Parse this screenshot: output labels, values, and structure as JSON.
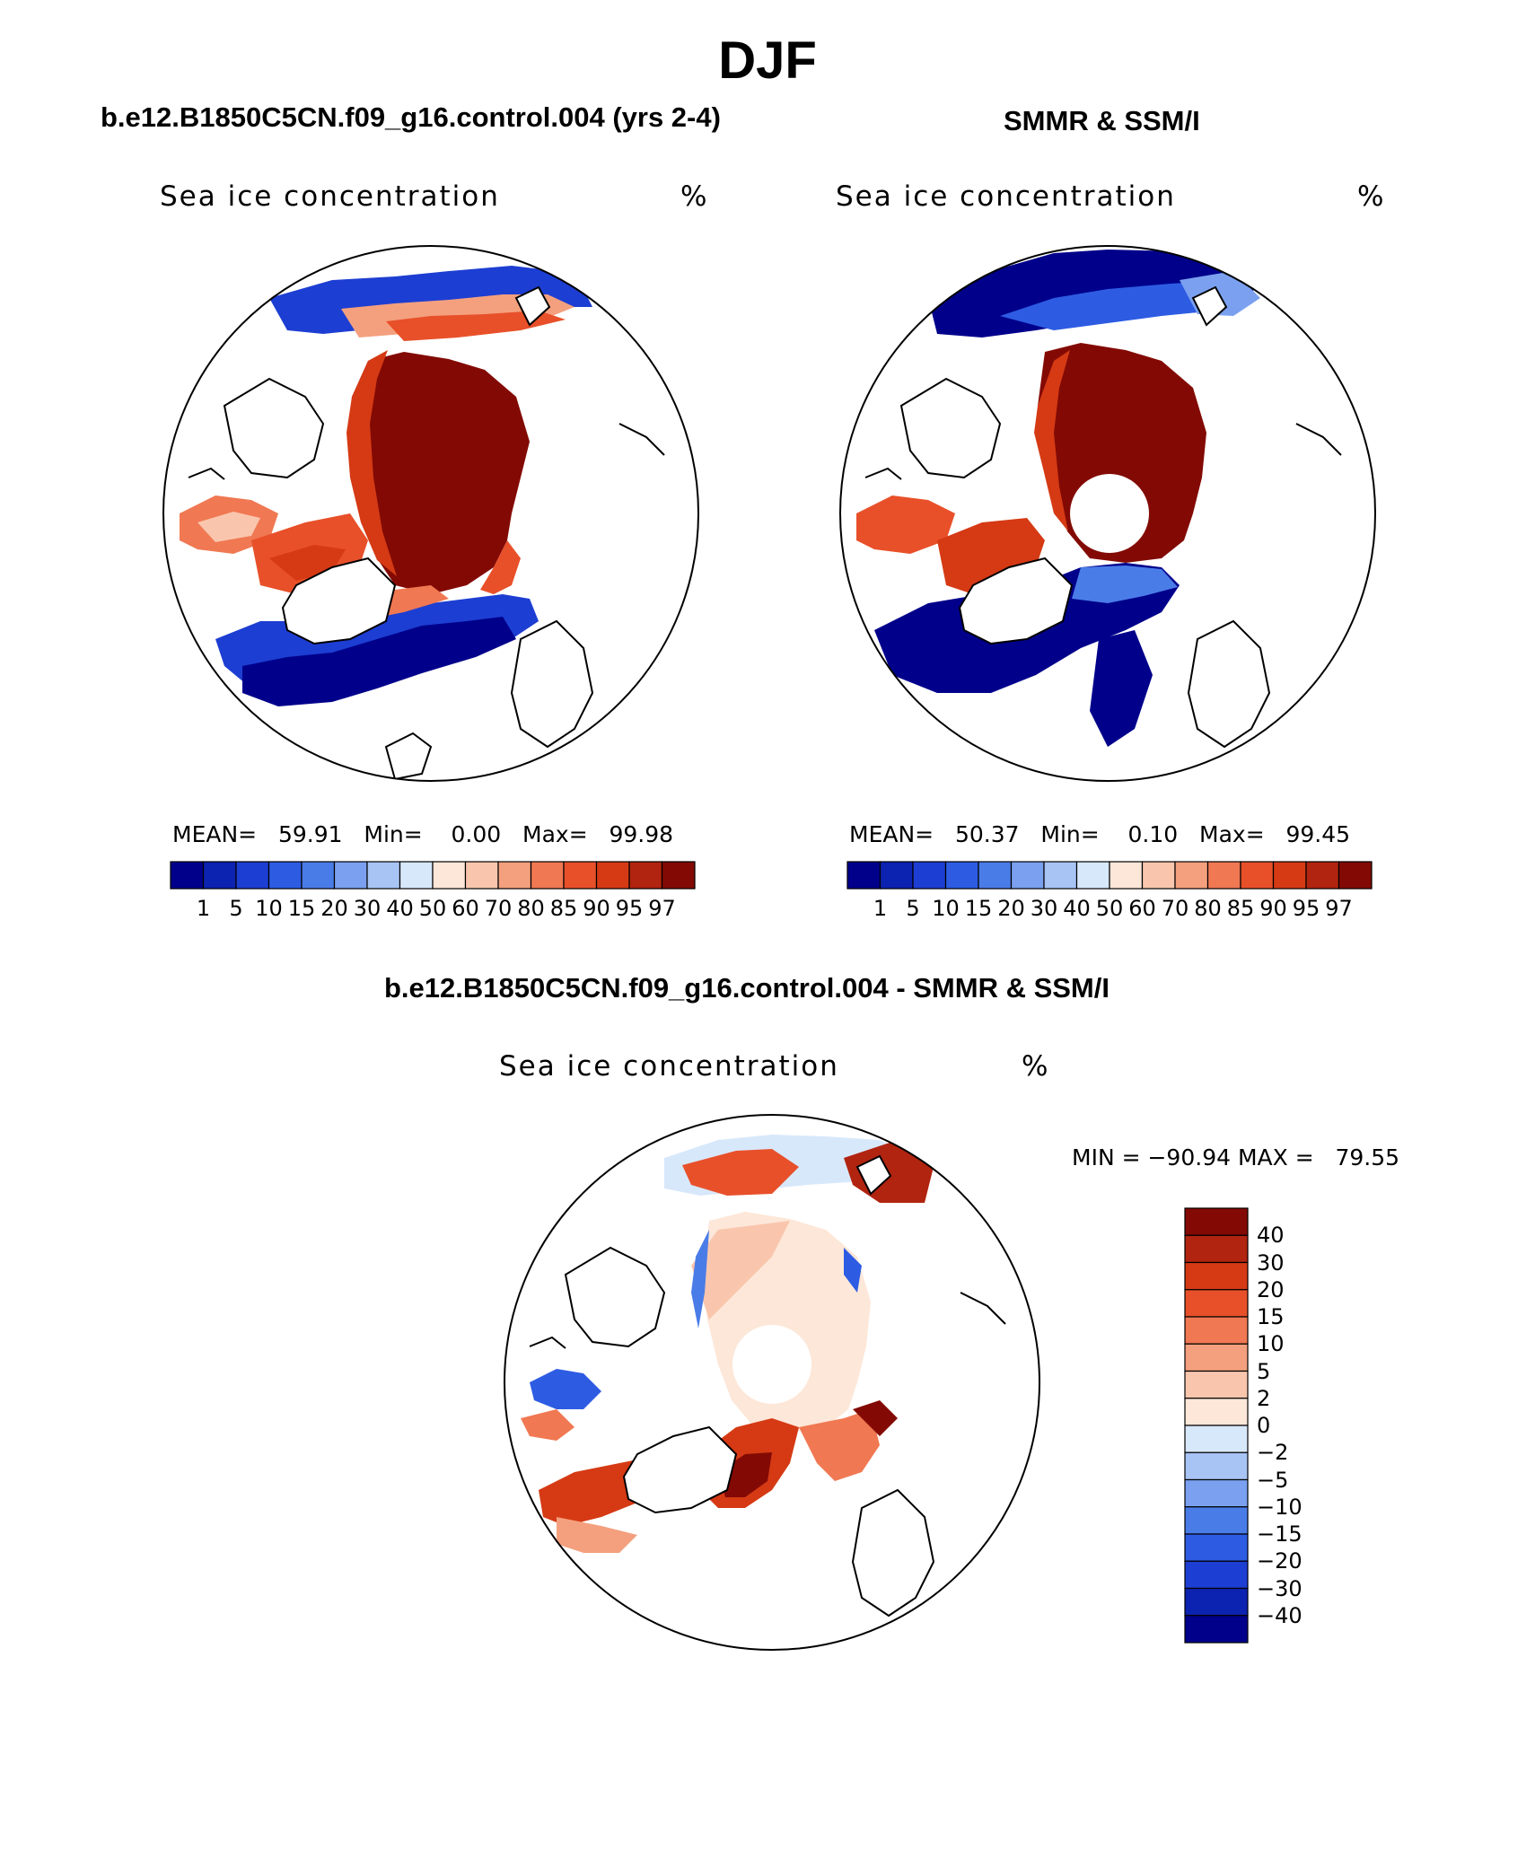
{
  "page": {
    "title": "DJF"
  },
  "panels": {
    "model": {
      "header": "b.e12.B1850C5CN.f09_g16.control.004 (yrs 2-4)",
      "field_label": "Sea ice concentration",
      "units": "%",
      "mean_label": "MEAN=",
      "mean": "59.91",
      "min_label": "Min=",
      "min": "0.00",
      "max_label": "Max=",
      "max": "99.98"
    },
    "obs": {
      "header": "SMMR & SSM/I",
      "field_label": "Sea ice concentration",
      "units": "%",
      "mean_label": "MEAN=",
      "mean": "50.37",
      "min_label": "Min=",
      "min": "0.10",
      "max_label": "Max=",
      "max": "99.45"
    },
    "diff": {
      "header": "b.e12.B1850C5CN.f09_g16.control.004 - SMMR & SSM/I",
      "field_label": "Sea ice concentration",
      "units": "%",
      "minmax_text": "MIN = −90.94 MAX =   79.55"
    }
  },
  "colorbar_abs": {
    "colors": [
      "#00008b",
      "#0c22b0",
      "#1d3ed2",
      "#2d5ce3",
      "#4a7ce8",
      "#7aa0ef",
      "#a8c4f5",
      "#d8e8fb",
      "#fde7d8",
      "#f9c6ad",
      "#f4a07e",
      "#f07852",
      "#e8502a",
      "#d53a14",
      "#b12410",
      "#830a04"
    ],
    "tick_labels": [
      "1",
      "5",
      "10",
      "15",
      "20",
      "30",
      "40",
      "50",
      "60",
      "70",
      "80",
      "85",
      "90",
      "95",
      "97"
    ]
  },
  "colorbar_diff": {
    "colors": [
      "#830a04",
      "#b12410",
      "#d53a14",
      "#e8502a",
      "#f07852",
      "#f4a07e",
      "#f9c6ad",
      "#fde7d8",
      "#d8e8fb",
      "#a8c4f5",
      "#7aa0ef",
      "#4a7ce8",
      "#2d5ce3",
      "#1d3ed2",
      "#0c22b0",
      "#00008b"
    ],
    "tick_labels": [
      "40",
      "30",
      "20",
      "15",
      "10",
      "5",
      "2",
      "0",
      "−2",
      "−5",
      "−10",
      "−15",
      "−20",
      "−30",
      "−40"
    ]
  }
}
